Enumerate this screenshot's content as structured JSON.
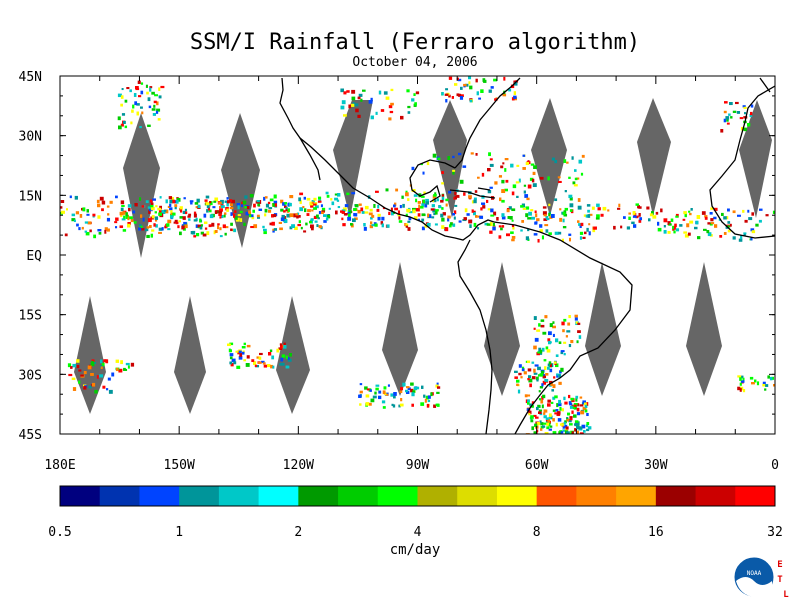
{
  "title": "SSM/I Rainfall (Ferraro algorithm)",
  "date": "October 04, 2006",
  "lat_labels": [
    "45N",
    "30N",
    "15N",
    "EQ",
    "15S",
    "30S",
    "45S"
  ],
  "lat_values": [
    45,
    30,
    15,
    0,
    -15,
    -30,
    -45
  ],
  "lon_labels": [
    "180E",
    "150W",
    "120W",
    "90W",
    "60W",
    "30W",
    "0"
  ],
  "lon_values": [
    -180,
    -150,
    -120,
    -90,
    -60,
    -30,
    0
  ],
  "extent": {
    "lon": [
      -180,
      0
    ],
    "lat": [
      -45,
      45
    ]
  },
  "colorbar": {
    "colors": [
      "#00007f",
      "#0033b0",
      "#0044ff",
      "#00959a",
      "#00c8c8",
      "#00ffff",
      "#009a00",
      "#00cc00",
      "#00ff00",
      "#b0b000",
      "#dddd00",
      "#ffff00",
      "#ff5500",
      "#ff8000",
      "#ffa500",
      "#9b0000",
      "#cc0000",
      "#ff0000"
    ],
    "tick_labels": [
      "0.5",
      "1",
      "2",
      "4",
      "8",
      "16",
      "32"
    ],
    "units": "cm/day"
  },
  "logo": {
    "text": "NOAA",
    "side_letters": [
      "E",
      "T",
      "L"
    ]
  },
  "colors": {
    "gap": "#666666",
    "coast": "#000000",
    "frame": "#000000"
  }
}
